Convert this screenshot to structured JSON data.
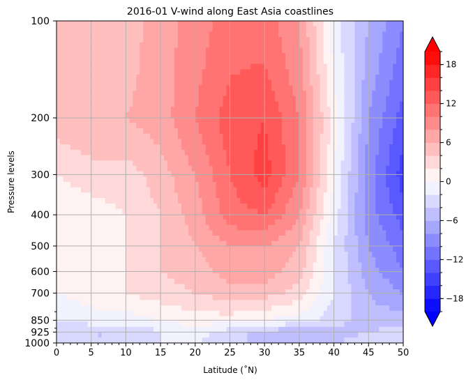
{
  "chart_data": {
    "type": "heatmap",
    "title": "2016-01 V-wind along East Asia coastlines",
    "xlabel": "Latitude (˚N)",
    "ylabel": "Pressure levels",
    "xlim": [
      0,
      50
    ],
    "x_ticks": [
      "0",
      "5",
      "10",
      "15",
      "20",
      "25",
      "30",
      "35",
      "40",
      "45",
      "50"
    ],
    "y_levels": [
      100,
      200,
      300,
      400,
      500,
      600,
      700,
      850,
      925,
      1000
    ],
    "y_ticks": [
      "100",
      "200",
      "300",
      "400",
      "500",
      "600",
      "700",
      "850",
      "925",
      "1000"
    ],
    "grid": true,
    "colormap": "bwr",
    "levels": [
      -20,
      -18,
      -16,
      -14,
      -12,
      -10,
      -8,
      -6,
      -4,
      -2,
      0,
      2,
      4,
      6,
      8,
      10,
      12,
      14,
      16,
      18,
      20
    ],
    "colorbar_ticks": [
      "−18",
      "−12",
      "−6",
      "0",
      "6",
      "12",
      "18"
    ],
    "colorbar_values": [
      -18,
      -12,
      -6,
      0,
      6,
      12,
      18
    ],
    "extend": "both",
    "field": {
      "lat": [
        0,
        5,
        10,
        15,
        20,
        25,
        30,
        35,
        40,
        45,
        50
      ],
      "pressure": [
        100,
        200,
        300,
        400,
        500,
        600,
        700,
        850,
        925,
        1000
      ],
      "v": [
        [
          5,
          6,
          5,
          7,
          9,
          11,
          11,
          8,
          -1,
          -6,
          -10
        ],
        [
          5,
          6,
          6,
          7,
          10,
          13,
          14,
          10,
          1,
          -8,
          -13
        ],
        [
          2,
          3,
          3,
          5,
          8,
          12,
          15,
          10,
          0,
          -9,
          -15
        ],
        [
          0,
          1,
          2,
          4,
          7,
          11,
          12,
          8,
          -1,
          -9,
          -13
        ],
        [
          0,
          1,
          2,
          4,
          6,
          8,
          8,
          6,
          -2,
          -8,
          -11
        ],
        [
          0,
          1,
          2,
          4,
          5,
          7,
          7,
          5,
          -2,
          -7,
          -10
        ],
        [
          0,
          1,
          2,
          3,
          4,
          5,
          5,
          3,
          -2,
          -6,
          -8
        ],
        [
          -2,
          -1,
          -1,
          0,
          1,
          1,
          0,
          -1,
          -3,
          -5,
          -5
        ],
        [
          -3,
          -4,
          -4,
          -2,
          -1,
          -3,
          -5,
          -5,
          -5,
          -4,
          -3
        ],
        [
          -3,
          -4,
          -4,
          -2,
          -2,
          -3,
          -5,
          -5,
          -4,
          -3,
          -2
        ]
      ]
    }
  }
}
